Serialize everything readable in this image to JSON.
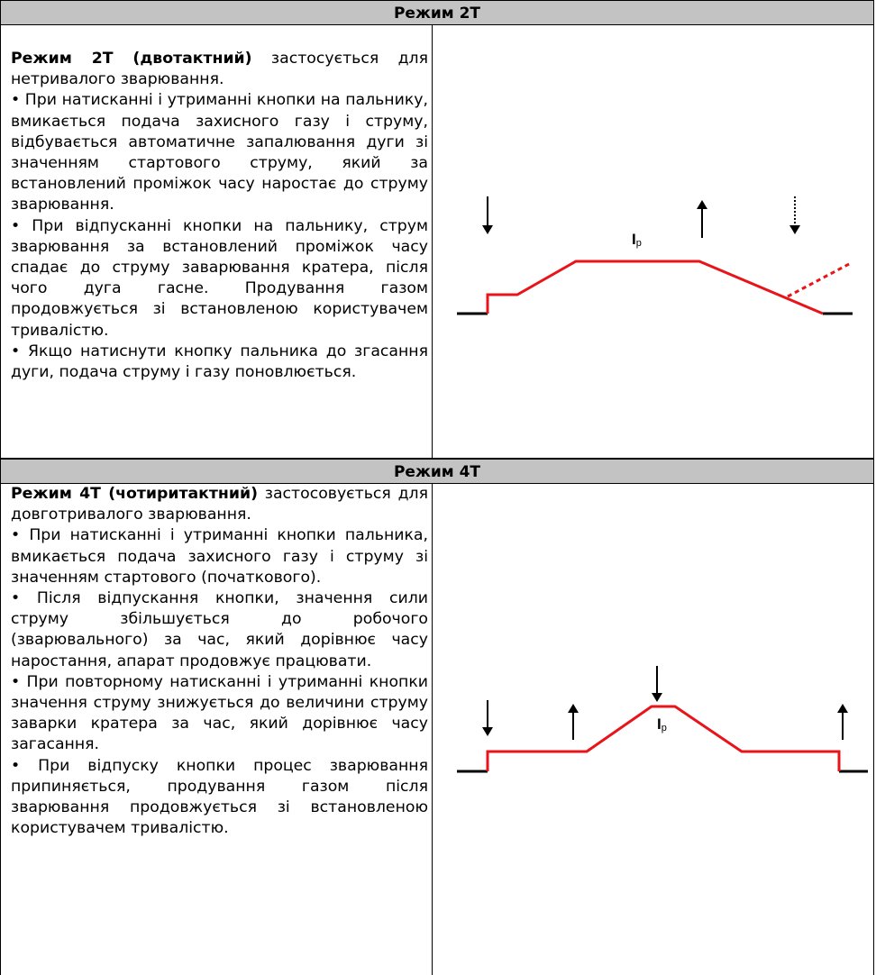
{
  "mode2t": {
    "header": "Режим 2Т",
    "lead": "Режим 2Т (двотактний)",
    "lead_rest": " застосується для нетривалого зварювання.",
    "bullets": [
      "• При натисканні і утриманні кнопки на пальнику, вмикається подача захисного газу і струму, відбувається автоматичне запалювання дуги зі значенням стартового струму, який за встановлений проміжок часу наростає до струму зварювання.",
      "• При відпусканні кнопки на пальнику, струм зварювання за встановлений проміжок часу спадає до струму заварювання кратера, після чого дуга гасне. Продування газом продовжується зі встановленою користувачем тривалістю.",
      "• Якщо натиснути кнопку пальника до згасання дуги, подача струму і газу поновлюється."
    ],
    "diagram_label": "I",
    "diagram_label_sub": "p"
  },
  "mode4t": {
    "header": "Режим 4Т",
    "lead": "Режим 4Т (чотиритактний)",
    "lead_rest": " застосовується для довготривалого зварювання.",
    "bullets": [
      "• При натисканні і утриманні кнопки пальника, вмикається подача захисного газу і струму зі значенням стартового (початкового).",
      "• Після відпускання кнопки, значення сили струму збільшується до робочого (зварювального) за час, який дорівнює часу наростання, апарат продовжує працювати.",
      "• При повторному натисканні і утриманні кнопки значення струму знижується до величини струму заварки кратера за час, який дорівнює часу загасання.",
      "• При відпуску кнопки процес зварювання припиняється, продування газом після зварювання продовжується зі встановленою користувачем тривалістю."
    ],
    "diagram_label": "I",
    "diagram_label_sub": "p"
  },
  "colors": {
    "header_bg": "#c3c3c3",
    "curve": "#e8141a",
    "line": "#000000"
  }
}
